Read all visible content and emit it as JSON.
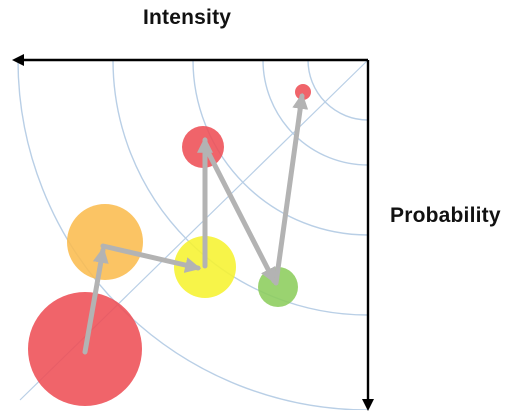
{
  "labels": {
    "top_axis": "Intensity",
    "right_axis": "Probability"
  },
  "colors": {
    "axis": "#000000",
    "contour": "#b9cfe6",
    "path_arrow": "#b3b3b3",
    "red": "#ee4f55",
    "orange": "#fbbc4e",
    "yellow": "#f6f230",
    "green": "#8ccd5c"
  },
  "nodes": [
    {
      "id": "large-red",
      "color": "red"
    },
    {
      "id": "orange",
      "color": "orange"
    },
    {
      "id": "yellow",
      "color": "yellow"
    },
    {
      "id": "medium-red",
      "color": "red"
    },
    {
      "id": "green",
      "color": "green"
    },
    {
      "id": "small-red",
      "color": "red"
    }
  ]
}
